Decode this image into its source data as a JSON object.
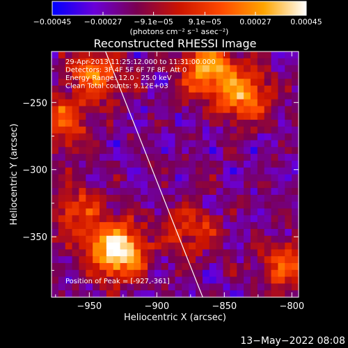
{
  "chart_data": {
    "type": "heatmap",
    "title": "Reconstructed RHESSI Image",
    "xlabel": "Heliocentric X (arcsec)",
    "ylabel": "Heliocentric Y (arcsec)",
    "xlim": [
      -978,
      -795
    ],
    "ylim": [
      -395,
      -212
    ],
    "x_ticks": [
      -950,
      -900,
      -850,
      -800
    ],
    "x_tick_labels": [
      "−950",
      "−900",
      "−850",
      "−800"
    ],
    "y_ticks": [
      -250,
      -300,
      -350
    ],
    "y_tick_labels": [
      "−250",
      "−300",
      "−350"
    ],
    "colorbar": {
      "range": [
        -0.00045,
        0.00045
      ],
      "ticks": [
        -0.00045,
        -0.00027,
        -9.1e-05,
        9.1e-05,
        0.00027,
        0.00045
      ],
      "tick_labels": [
        "−0.00045",
        "−0.00027",
        "−9.1e−05",
        "9.1e−05",
        "0.00027",
        "0.00045"
      ],
      "units": "(photons cm⁻² s⁻¹ asec⁻²)",
      "colormap": [
        "#0000ff",
        "#6a00d8",
        "#7a0050",
        "#cc1400",
        "#ff4a00",
        "#ffa500",
        "#ffffff"
      ]
    },
    "annotations": [
      "29-Apr-2013 11:25:12.000 to 11:31:00.000",
      "Detectors: 3F 4F 5F 6F 7F 8F, Att 0",
      "Energy Range: 12.0 - 25.0 keV",
      "Clean     Total counts: 9.12E+03"
    ],
    "peak_label": "Position of Peak = [-927,-361]",
    "limb_line": {
      "from": [
        -938,
        -212
      ],
      "to": [
        -866,
        -395
      ]
    },
    "hotspots": [
      {
        "x": -930,
        "y": -360,
        "level": 1.0
      },
      {
        "x": -945,
        "y": -228,
        "level": 0.55
      },
      {
        "x": -862,
        "y": -225,
        "level": 0.7
      },
      {
        "x": -835,
        "y": -245,
        "level": 0.6
      },
      {
        "x": -970,
        "y": -265,
        "level": 0.5
      },
      {
        "x": -960,
        "y": -330,
        "level": 0.45
      },
      {
        "x": -875,
        "y": -345,
        "level": 0.4
      },
      {
        "x": -805,
        "y": -370,
        "level": 0.45
      }
    ]
  },
  "footer": {
    "date": "13−May−2022 08:08"
  }
}
